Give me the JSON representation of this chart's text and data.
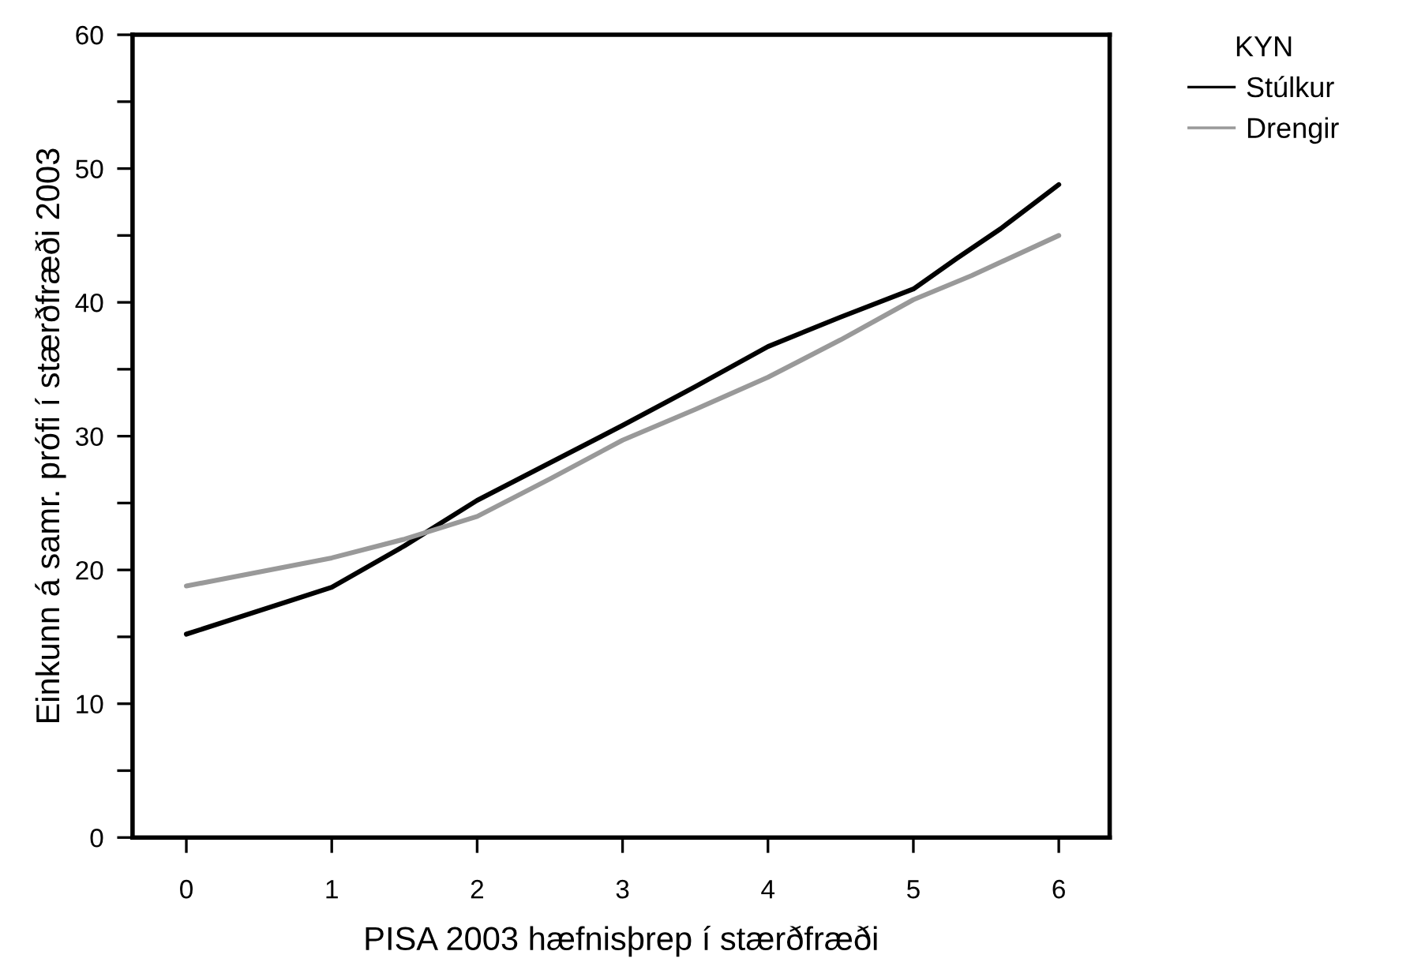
{
  "chart_data": {
    "type": "line",
    "xlabel": "PISA 2003 hæfnisþrep í stærðfræði",
    "ylabel": "Einkunn á samr. prófi í stærðfræði 2003",
    "legend_title": "KYN",
    "legend": "top right",
    "xlim": [
      -0.37,
      6.35
    ],
    "ylim": [
      0,
      60
    ],
    "xticks": [
      0,
      1,
      2,
      3,
      4,
      5,
      6
    ],
    "yticks": [
      0,
      {
        "value": 5,
        "label": null
      },
      10,
      {
        "value": 15,
        "label": null
      },
      20,
      {
        "value": 25,
        "label": null
      },
      30,
      {
        "value": 35,
        "label": null
      },
      40,
      {
        "value": 45,
        "label": null
      },
      50,
      {
        "value": 55,
        "label": null
      },
      60
    ],
    "grid": false,
    "marker": "none",
    "line_style": "solid",
    "series": [
      {
        "name": "Stúlkur",
        "color": "#000000",
        "x": [
          0,
          1,
          1.5,
          2,
          2.5,
          3,
          3.5,
          4,
          4.5,
          5,
          5.3,
          5.6,
          6
        ],
        "values": [
          15.2,
          18.7,
          21.8,
          25.2,
          28.0,
          30.8,
          33.7,
          36.7,
          38.9,
          41.0,
          43.3,
          45.5,
          48.8
        ]
      },
      {
        "name": "Drengir",
        "color": "#999999",
        "x": [
          0,
          1,
          1.5,
          2,
          2.5,
          3,
          3.5,
          4,
          4.5,
          5,
          5.4,
          6
        ],
        "values": [
          18.8,
          20.9,
          22.3,
          24.0,
          26.8,
          29.7,
          32.0,
          34.4,
          37.2,
          40.2,
          42.0,
          45.0
        ]
      }
    ]
  }
}
